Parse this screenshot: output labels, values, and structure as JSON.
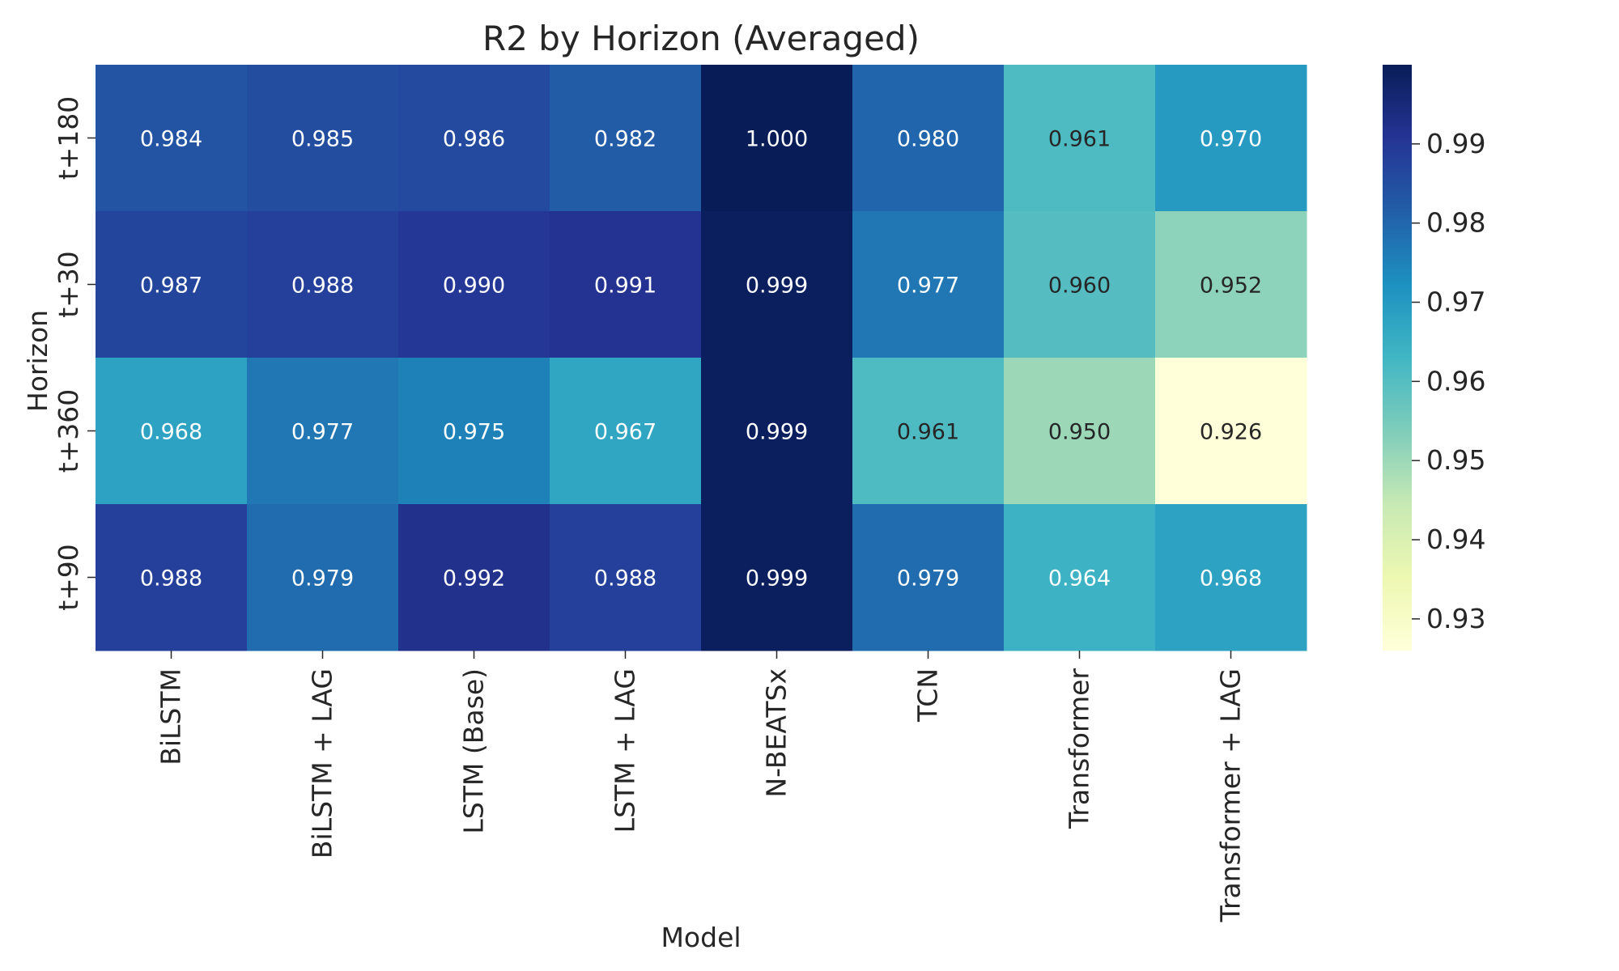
{
  "chart_data": {
    "type": "heatmap",
    "title": "R2 by Horizon (Averaged)",
    "xlabel": "Model",
    "ylabel": "Horizon",
    "x_categories": [
      "BiLSTM",
      "BiLSTM + LAG",
      "LSTM (Base)",
      "LSTM + LAG",
      "N-BEATSx",
      "TCN",
      "Transformer",
      "Transformer + LAG"
    ],
    "y_categories": [
      "t+180",
      "t+30",
      "t+360",
      "t+90"
    ],
    "values": [
      [
        0.984,
        0.985,
        0.986,
        0.982,
        1.0,
        0.98,
        0.961,
        0.97
      ],
      [
        0.987,
        0.988,
        0.99,
        0.991,
        0.999,
        0.977,
        0.96,
        0.952
      ],
      [
        0.968,
        0.977,
        0.975,
        0.967,
        0.999,
        0.961,
        0.95,
        0.926
      ],
      [
        0.988,
        0.979,
        0.992,
        0.988,
        0.999,
        0.979,
        0.964,
        0.968
      ]
    ],
    "value_labels": [
      [
        "0.984",
        "0.985",
        "0.986",
        "0.982",
        "1.000",
        "0.980",
        "0.961",
        "0.970"
      ],
      [
        "0.987",
        "0.988",
        "0.990",
        "0.991",
        "0.999",
        "0.977",
        "0.960",
        "0.952"
      ],
      [
        "0.968",
        "0.977",
        "0.975",
        "0.967",
        "0.999",
        "0.961",
        "0.950",
        "0.926"
      ],
      [
        "0.988",
        "0.979",
        "0.992",
        "0.988",
        "0.999",
        "0.979",
        "0.964",
        "0.968"
      ]
    ],
    "colormap": "YlGnBu",
    "colormap_stops": [
      "#ffffd9",
      "#edf8b1",
      "#c7e9b4",
      "#7fcdbb",
      "#41b6c4",
      "#1d91c0",
      "#225ea8",
      "#253494",
      "#081d58"
    ],
    "color_range": [
      0.926,
      1.0
    ],
    "colorbar_ticks": [
      0.93,
      0.94,
      0.95,
      0.96,
      0.97,
      0.98,
      0.99
    ],
    "colorbar_tick_labels": [
      "0.93",
      "0.94",
      "0.95",
      "0.96",
      "0.97",
      "0.98",
      "0.99"
    ],
    "annotation_colors": {
      "dark_text": "#262626",
      "light_text": "#ffffff"
    }
  }
}
